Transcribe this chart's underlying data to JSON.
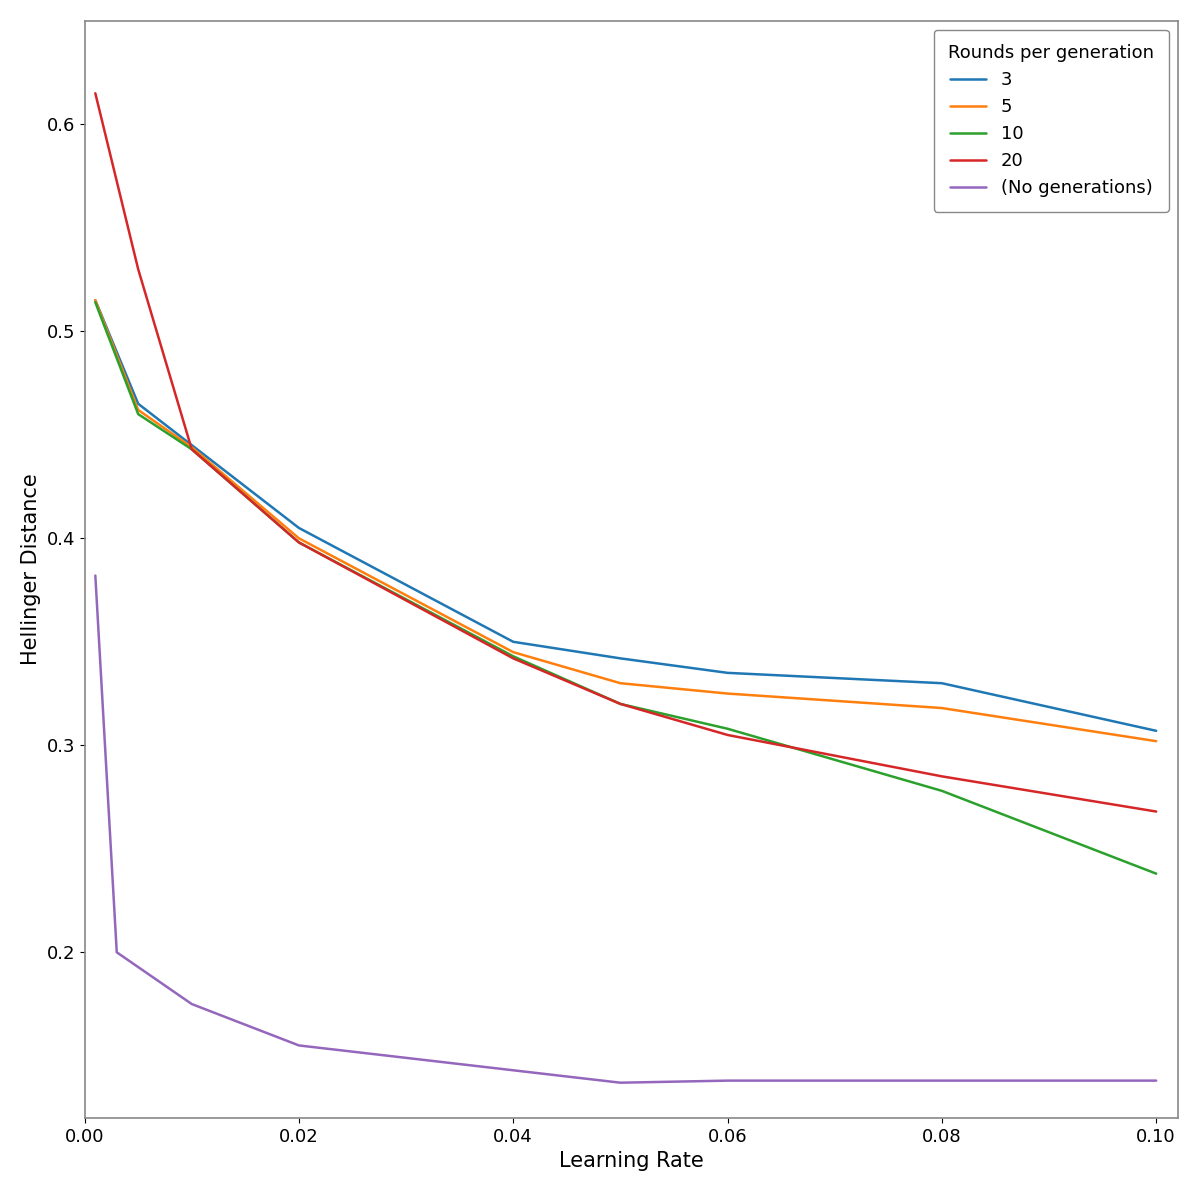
{
  "xlabel": "Learning Rate",
  "ylabel": "Hellinger Distance",
  "legend_title": "Rounds per generation",
  "xlim": [
    0.0,
    0.102
  ],
  "ylim": [
    0.12,
    0.65
  ],
  "series": [
    {
      "label": "3",
      "color": "#1f77b4",
      "x": [
        0.001,
        0.005,
        0.01,
        0.02,
        0.04,
        0.05,
        0.06,
        0.08,
        0.1
      ],
      "y": [
        0.515,
        0.465,
        0.445,
        0.405,
        0.35,
        0.342,
        0.335,
        0.33,
        0.307
      ]
    },
    {
      "label": "5",
      "color": "#ff7f0e",
      "x": [
        0.001,
        0.005,
        0.01,
        0.02,
        0.04,
        0.05,
        0.06,
        0.08,
        0.1
      ],
      "y": [
        0.515,
        0.462,
        0.444,
        0.4,
        0.345,
        0.33,
        0.325,
        0.318,
        0.302
      ]
    },
    {
      "label": "10",
      "color": "#2ca02c",
      "x": [
        0.001,
        0.005,
        0.01,
        0.02,
        0.04,
        0.05,
        0.06,
        0.08,
        0.1
      ],
      "y": [
        0.514,
        0.46,
        0.443,
        0.398,
        0.343,
        0.32,
        0.308,
        0.278,
        0.238
      ]
    },
    {
      "label": "20",
      "color": "#d62728",
      "x": [
        0.001,
        0.005,
        0.01,
        0.02,
        0.04,
        0.05,
        0.06,
        0.08,
        0.1
      ],
      "y": [
        0.615,
        0.53,
        0.443,
        0.398,
        0.342,
        0.32,
        0.305,
        0.285,
        0.268
      ]
    },
    {
      "label": "(No generations)",
      "color": "#9467bd",
      "x": [
        0.001,
        0.003,
        0.01,
        0.02,
        0.04,
        0.05,
        0.06,
        0.08,
        0.1
      ],
      "y": [
        0.382,
        0.2,
        0.175,
        0.155,
        0.143,
        0.137,
        0.138,
        0.138,
        0.138
      ]
    }
  ],
  "figsize": [
    12.0,
    11.92
  ],
  "dpi": 100,
  "xticks": [
    0.0,
    0.02,
    0.04,
    0.06,
    0.08,
    0.1
  ],
  "yticks": [
    0.2,
    0.3,
    0.4,
    0.5,
    0.6
  ],
  "background_color": "#ffffff",
  "spine_color": "#888888",
  "legend_loc": "upper right"
}
